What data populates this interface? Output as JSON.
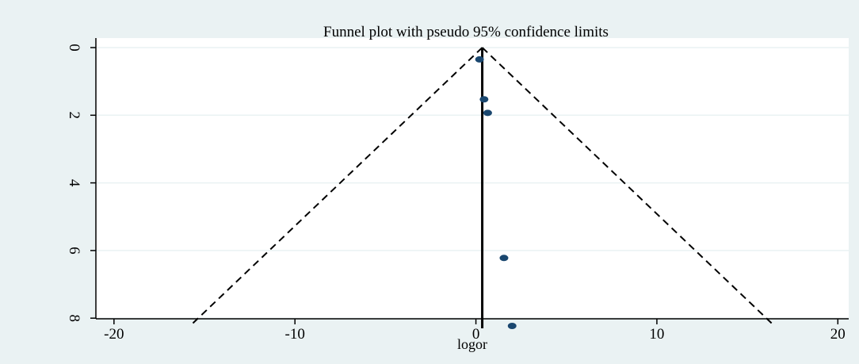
{
  "chart_data": {
    "type": "scatter",
    "title": "Funnel plot with pseudo 95% confidence limits",
    "xlabel": "logor",
    "ylabel": "",
    "xlim": [
      -21,
      20.6
    ],
    "ylim": [
      0,
      8.3
    ],
    "y_reversed": true,
    "x_ticks": [
      -20,
      -10,
      0,
      10,
      20
    ],
    "x_tick_labels": [
      "-20",
      "-10",
      "0",
      "10",
      "20"
    ],
    "y_ticks": [
      0,
      2,
      4,
      6,
      8
    ],
    "y_tick_labels": [
      "0",
      "2",
      "4",
      "6",
      "8"
    ],
    "grid": "horizontal",
    "points": [
      {
        "x": 0.2,
        "y": 0.35
      },
      {
        "x": 0.45,
        "y": 1.53
      },
      {
        "x": 0.65,
        "y": 1.93
      },
      {
        "x": 1.55,
        "y": 6.22
      },
      {
        "x": 2.0,
        "y": 8.23
      }
    ],
    "pooled_line": {
      "x": 0.35,
      "y_from": 0,
      "y_to": 8.3
    },
    "funnel_apex": {
      "x": 0.35,
      "y": 0
    },
    "funnel_left_end": {
      "x": -15.8,
      "y": 8.23
    },
    "funnel_right_end": {
      "x": 16.5,
      "y": 8.23
    },
    "colors": {
      "background": "#eaf2f3",
      "plot_background": "#ffffff",
      "marker": "#1a476f",
      "grid": "#eaf2f3",
      "line": "#000000"
    }
  }
}
